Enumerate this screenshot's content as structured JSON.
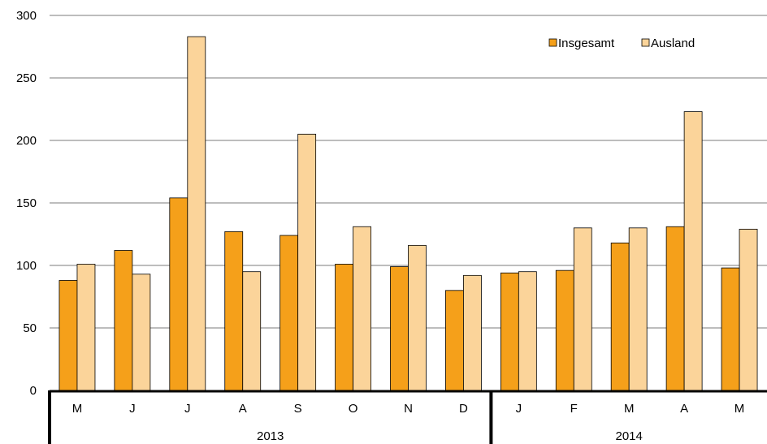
{
  "chart_data": {
    "type": "bar",
    "categories": [
      "M",
      "J",
      "J",
      "A",
      "S",
      "O",
      "N",
      "D",
      "J",
      "F",
      "M",
      "A",
      "M"
    ],
    "groups": [
      {
        "label": "2013",
        "count": 8
      },
      {
        "label": "2014",
        "count": 5
      }
    ],
    "series": [
      {
        "name": "Insgesamt",
        "color": "#f5a01a",
        "values": [
          88,
          112,
          154,
          127,
          124,
          101,
          99,
          80,
          94,
          96,
          118,
          131,
          98
        ]
      },
      {
        "name": "Ausland",
        "color": "#fbd49a",
        "values": [
          101,
          93,
          283,
          95,
          205,
          131,
          116,
          92,
          95,
          130,
          130,
          223,
          129
        ]
      }
    ],
    "ylim": [
      0,
      300
    ],
    "yticks": [
      0,
      50,
      100,
      150,
      200,
      250,
      300
    ],
    "grid": true,
    "legend_position": "top-right"
  }
}
